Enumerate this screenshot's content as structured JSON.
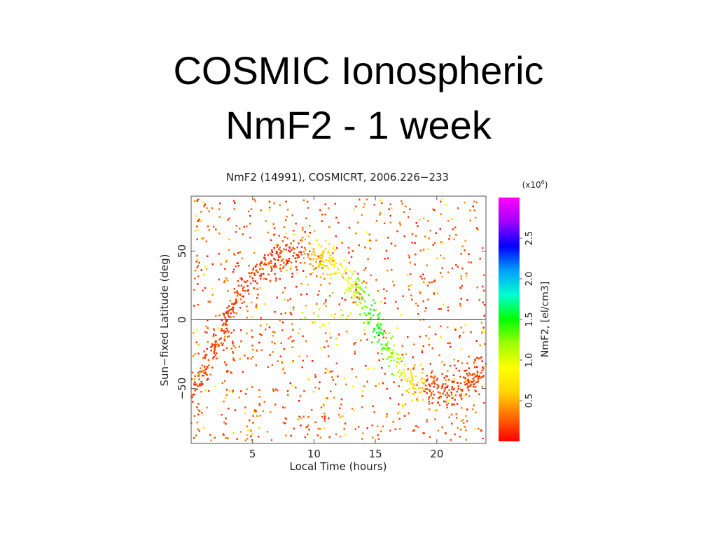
{
  "slide": {
    "title_line1": "COSMIC Ionospheric",
    "title_line2": "NmF2 - 1 week"
  },
  "chart_data": {
    "type": "scatter",
    "title": "NmF2 (14991), COSMICRT, 2006.226−233",
    "xlabel": "Local Time (hours)",
    "ylabel": "Sun−fixed Latitude (deg)",
    "xlim": [
      0,
      24
    ],
    "ylim": [
      -90,
      90
    ],
    "x_ticks": [
      5,
      10,
      15,
      20
    ],
    "y_ticks": [
      -50,
      0,
      50
    ],
    "x_tick_labels": [
      "5",
      "10",
      "15",
      "20"
    ],
    "y_tick_labels": [
      "−50",
      "0",
      "50"
    ],
    "reference_line_y": 0,
    "n_points": 14991,
    "crest_track": [
      {
        "x": 0.0,
        "y": -55
      },
      {
        "x": 2.0,
        "y": -20
      },
      {
        "x": 4.0,
        "y": 20
      },
      {
        "x": 6.0,
        "y": 40
      },
      {
        "x": 9.0,
        "y": 52
      },
      {
        "x": 12.0,
        "y": 40
      },
      {
        "x": 14.0,
        "y": 15
      },
      {
        "x": 16.0,
        "y": -20
      },
      {
        "x": 18.0,
        "y": -45
      },
      {
        "x": 21.0,
        "y": -55
      },
      {
        "x": 24.0,
        "y": -35
      }
    ],
    "colorbar": {
      "label": "NmF2, [el/cm3]",
      "multiplier": "(x10",
      "multiplier_exponent": "6",
      "multiplier_close": ")",
      "range": [
        0,
        3.0
      ],
      "ticks": [
        0.5,
        1.0,
        1.5,
        2.0,
        2.5
      ],
      "tick_labels": [
        "0.5",
        "1.0",
        "1.5",
        "2.0",
        "2.5"
      ],
      "colors": [
        "#ff0000",
        "#ff6a00",
        "#ffd400",
        "#ffff00",
        "#a0ff00",
        "#00ff00",
        "#00ffd0",
        "#00a0ff",
        "#0000ff",
        "#a000ff",
        "#ff00ff"
      ]
    }
  }
}
